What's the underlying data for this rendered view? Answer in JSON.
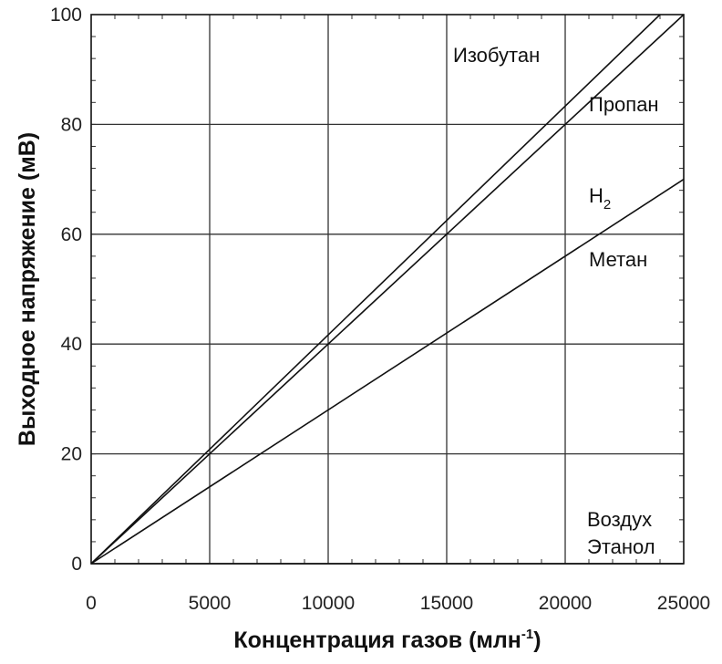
{
  "chart_data": {
    "type": "line",
    "xlabel": "Концентрация газов (млн",
    "xlabel_sup": "-1",
    "xlabel_end": ")",
    "ylabel": "Выходное напряжение (мВ)",
    "xlim": [
      0,
      25000
    ],
    "ylim": [
      0,
      100
    ],
    "xticks": [
      0,
      5000,
      10000,
      15000,
      20000,
      25000
    ],
    "yticks": [
      0,
      20,
      40,
      60,
      80,
      100
    ],
    "grid": true,
    "legend": "none",
    "series": [
      {
        "name": "Изобутан",
        "x": [
          0,
          24000
        ],
        "y": [
          0,
          100
        ]
      },
      {
        "name": "Пропан",
        "x": [
          0,
          25000
        ],
        "y": [
          0,
          100
        ]
      },
      {
        "name": "H",
        "name_sub": "2",
        "x": [
          0,
          25000
        ],
        "y": [
          0,
          70
        ]
      },
      {
        "name": "Метан",
        "x": [
          0,
          25000
        ],
        "y": [
          0,
          70
        ]
      },
      {
        "name": "Воздух",
        "x": [
          0,
          25000
        ],
        "y": [
          0,
          0
        ]
      },
      {
        "name": "Этанол",
        "x": [
          0,
          25000
        ],
        "y": [
          0,
          0
        ]
      }
    ]
  }
}
